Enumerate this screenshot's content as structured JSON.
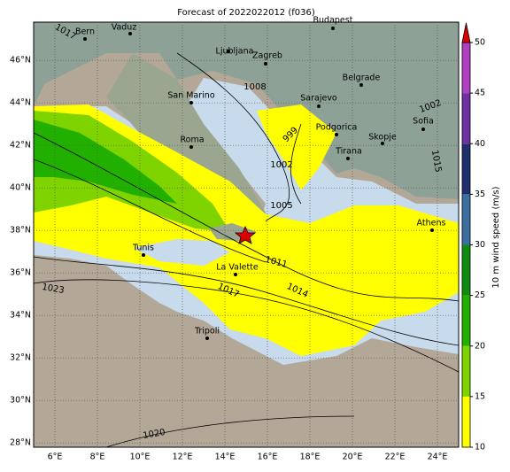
{
  "title": "Forecast of 2022022012 (f036)",
  "map": {
    "lon_range": [
      5,
      25
    ],
    "lat_range": [
      27.8,
      47.8
    ],
    "lon_ticks": [
      {
        "value": 6,
        "label": "6°E"
      },
      {
        "value": 8,
        "label": "8°E"
      },
      {
        "value": 10,
        "label": "10°E"
      },
      {
        "value": 12,
        "label": "12°E"
      },
      {
        "value": 14,
        "label": "14°E"
      },
      {
        "value": 16,
        "label": "16°E"
      },
      {
        "value": 18,
        "label": "18°E"
      },
      {
        "value": 20,
        "label": "20°E"
      },
      {
        "value": 22,
        "label": "22°E"
      },
      {
        "value": 24,
        "label": "24°E"
      }
    ],
    "lat_ticks": [
      {
        "value": 28,
        "label": "28°N"
      },
      {
        "value": 30,
        "label": "30°N"
      },
      {
        "value": 32,
        "label": "32°N"
      },
      {
        "value": 34,
        "label": "34°N"
      },
      {
        "value": 36,
        "label": "36°N"
      },
      {
        "value": 38,
        "label": "38°N"
      },
      {
        "value": 40,
        "label": "40°N"
      },
      {
        "value": 42,
        "label": "42°N"
      },
      {
        "value": 44,
        "label": "44°N"
      },
      {
        "value": 46,
        "label": "46°N"
      }
    ],
    "cities": [
      "Bern",
      "Vaduz",
      "Ljubljana",
      "Zagreb",
      "Budapest",
      "Belgrade",
      "San Marino",
      "Sarajevo",
      "Roma",
      "Podgorica",
      "Skopje",
      "Sofia",
      "Tirana",
      "Athens",
      "Tunis",
      "La Valette",
      "Tripoli"
    ],
    "isobars": [
      1008,
      999,
      1002,
      1005,
      1011,
      1014,
      1017,
      1020,
      1023,
      1002,
      1015,
      1017
    ]
  },
  "colorbar": {
    "label": "10 m wind speed (m/s)",
    "range": [
      10,
      50
    ],
    "ticks": [
      10,
      15,
      20,
      25,
      30,
      35,
      40,
      45,
      50
    ],
    "colors": [
      "#ffff00",
      "#7fd400",
      "#22b000",
      "#108a10",
      "#3a6fa0",
      "#20306f",
      "#7030a0",
      "#b040c0"
    ],
    "extend_color": "#dd0000"
  }
}
